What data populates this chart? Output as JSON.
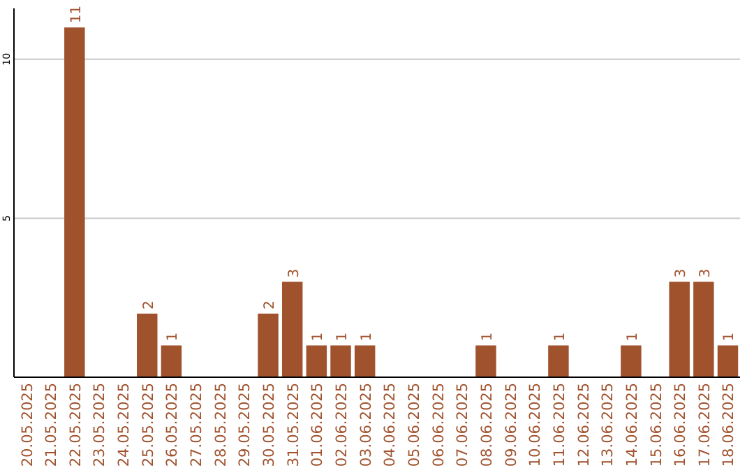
{
  "chart_data": {
    "type": "bar",
    "categories": [
      "20.05.2025",
      "21.05.2025",
      "22.05.2025",
      "23.05.2025",
      "24.05.2025",
      "25.05.2025",
      "26.05.2025",
      "27.05.2025",
      "28.05.2025",
      "29.05.2025",
      "30.05.2025",
      "31.05.2025",
      "01.06.2025",
      "02.06.2025",
      "03.06.2025",
      "04.06.2025",
      "05.06.2025",
      "06.06.2025",
      "07.06.2025",
      "08.06.2025",
      "09.06.2025",
      "10.06.2025",
      "11.06.2025",
      "12.06.2025",
      "13.06.2025",
      "14.06.2025",
      "15.06.2025",
      "16.06.2025",
      "17.06.2025",
      "18.06.2025"
    ],
    "values": [
      0,
      0,
      11,
      0,
      0,
      2,
      1,
      0,
      0,
      0,
      2,
      3,
      1,
      1,
      1,
      0,
      0,
      0,
      0,
      1,
      0,
      0,
      1,
      0,
      0,
      1,
      0,
      3,
      3,
      1
    ],
    "value_labels": [
      null,
      null,
      "11",
      null,
      null,
      "2",
      "1",
      null,
      null,
      null,
      "2",
      "3",
      "1",
      "1",
      "1",
      null,
      null,
      null,
      null,
      "1",
      null,
      null,
      "1",
      null,
      null,
      "1",
      null,
      "3",
      "3",
      "1"
    ],
    "color": "#a0522d",
    "ylim": [
      0,
      11.6
    ],
    "yticks": [
      5,
      10
    ],
    "grid": "y"
  }
}
